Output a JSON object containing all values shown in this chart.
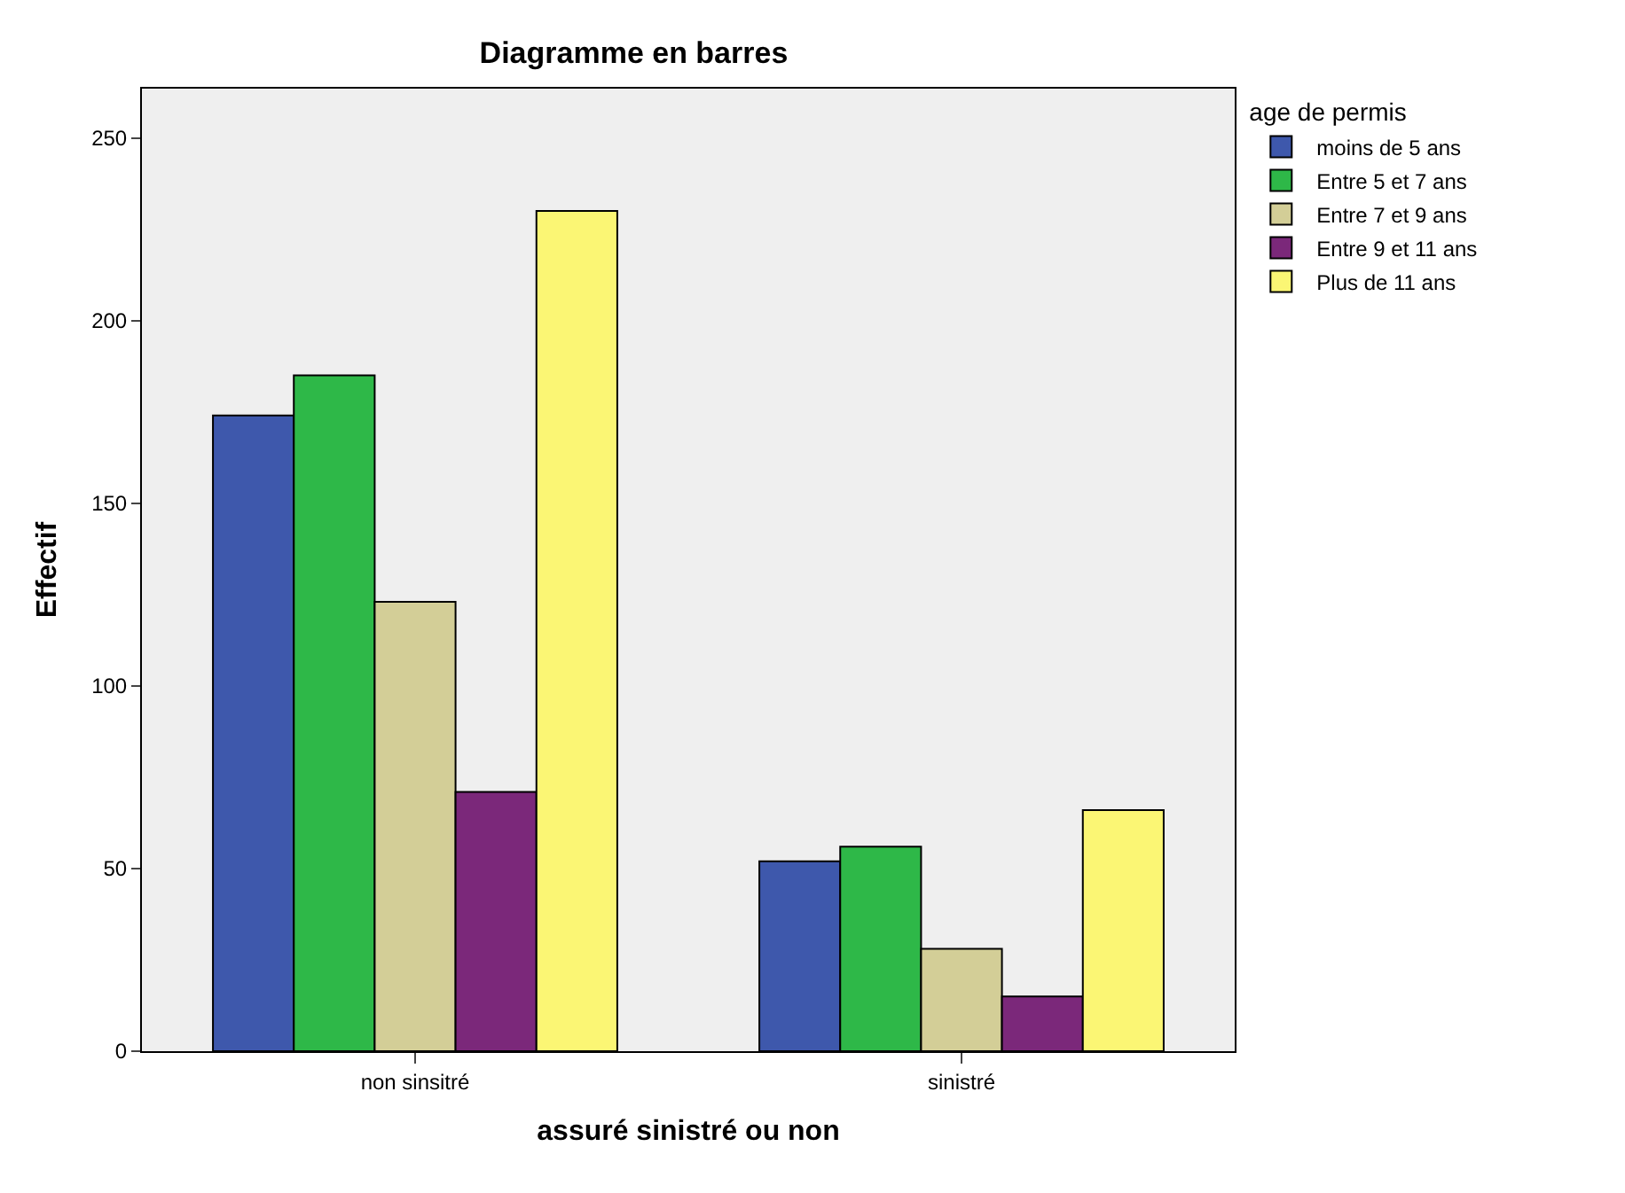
{
  "chart_data": {
    "type": "bar",
    "title": "Diagramme en barres",
    "xlabel": "assuré sinistré ou non",
    "ylabel": "Effectif",
    "legend_title": "age de permis",
    "categories": [
      "non sinsitré",
      "sinistré"
    ],
    "series": [
      {
        "name": "moins de 5 ans",
        "color": "#3e58ac",
        "values": [
          174,
          52
        ]
      },
      {
        "name": "Entre 5 et 7 ans",
        "color": "#2eb848",
        "values": [
          185,
          56
        ]
      },
      {
        "name": "Entre 7 et 9 ans",
        "color": "#d3ce97",
        "values": [
          123,
          28
        ]
      },
      {
        "name": "Entre 9 et 11 ans",
        "color": "#7b287a",
        "values": [
          71,
          15
        ]
      },
      {
        "name": "Plus de 11 ans",
        "color": "#fbf674",
        "values": [
          230,
          66
        ]
      }
    ],
    "ylim": [
      0,
      263.5
    ],
    "yticks": [
      0,
      50,
      100,
      150,
      200,
      250
    ],
    "grid": false,
    "legend": "top right"
  }
}
